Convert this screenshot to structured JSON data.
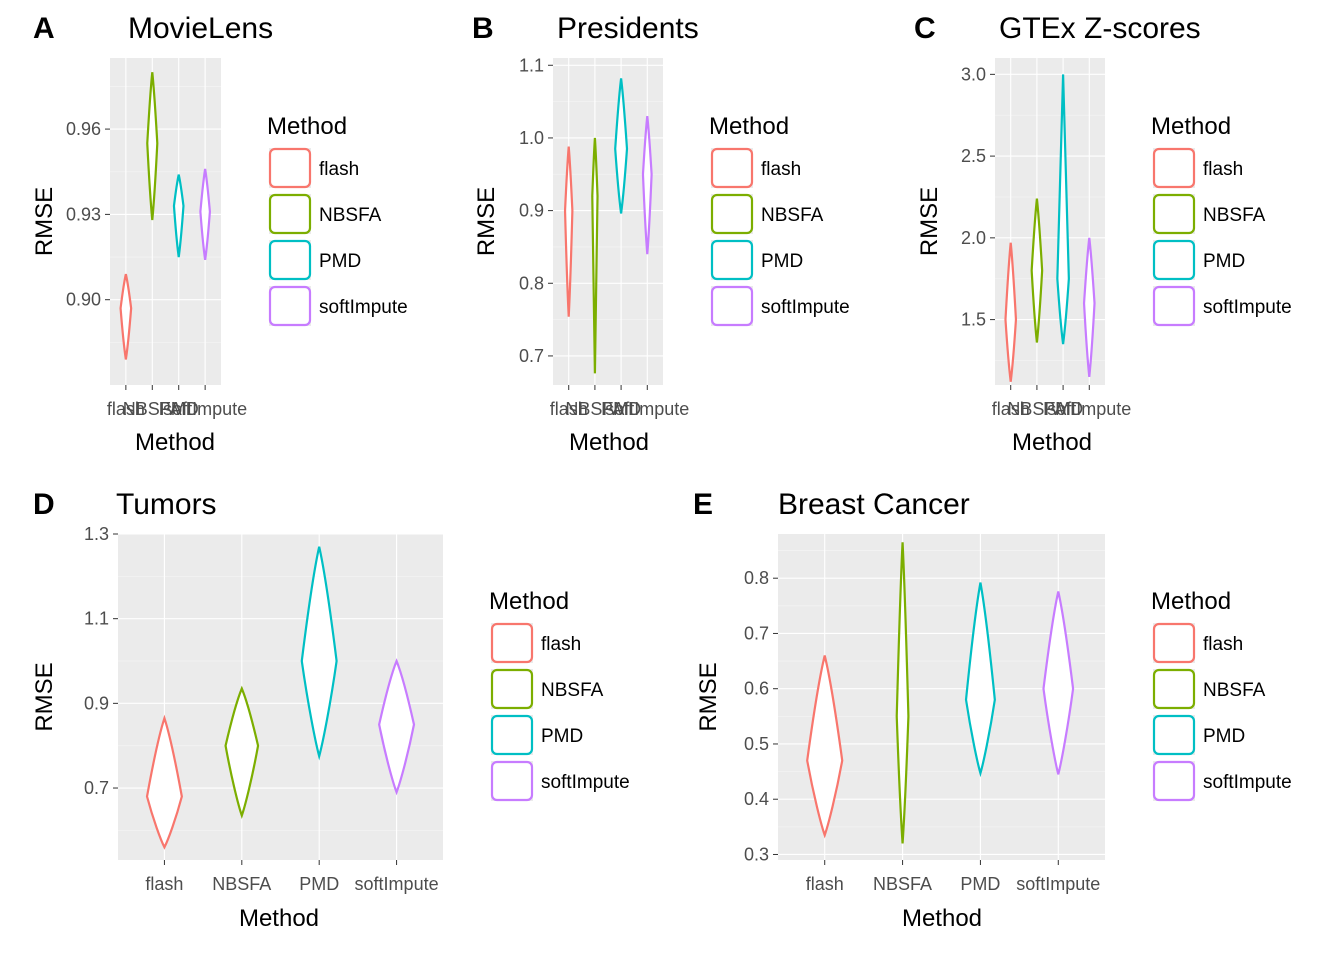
{
  "legend": {
    "title": "Method",
    "items": [
      "flash",
      "NBSFA",
      "PMD",
      "softImpute"
    ],
    "colors": [
      "#F8766D",
      "#7CAE00",
      "#00BFC4",
      "#C77CFF"
    ]
  },
  "chart_data": [
    {
      "panel": "A",
      "type": "violin",
      "title": "MovieLens",
      "xlabel": "Method",
      "ylabel": "RMSE",
      "categories": [
        "flash",
        "NBSFA",
        "PMD",
        "softImpute"
      ],
      "ylim": [
        0.87,
        0.985
      ],
      "yticks": [
        0.9,
        0.93,
        0.96
      ],
      "ytick_labels": [
        "0.90",
        "0.93",
        "0.96"
      ],
      "series": [
        {
          "name": "flash",
          "min": 0.879,
          "max": 0.909,
          "mid": 0.894,
          "peak": 0.897,
          "halfwidth": 0.4
        },
        {
          "name": "NBSFA",
          "min": 0.928,
          "max": 0.98,
          "mid": 0.955,
          "peak": 0.955,
          "halfwidth": 0.38
        },
        {
          "name": "PMD",
          "min": 0.915,
          "max": 0.944,
          "mid": 0.93,
          "peak": 0.933,
          "halfwidth": 0.36
        },
        {
          "name": "softImpute",
          "min": 0.914,
          "max": 0.946,
          "mid": 0.93,
          "peak": 0.931,
          "halfwidth": 0.36
        }
      ]
    },
    {
      "panel": "B",
      "type": "violin",
      "title": "Presidents",
      "xlabel": "Method",
      "ylabel": "RMSE",
      "categories": [
        "flash",
        "NBSFA",
        "PMD",
        "softImpute"
      ],
      "ylim": [
        0.66,
        1.11
      ],
      "yticks": [
        0.7,
        0.8,
        0.9,
        1.0,
        1.1
      ],
      "ytick_labels": [
        "0.7",
        "0.8",
        "0.9",
        "1.0",
        "1.1"
      ],
      "series": [
        {
          "name": "flash",
          "min": 0.754,
          "max": 0.988,
          "mid": 0.87,
          "peak": 0.9,
          "halfwidth": 0.28
        },
        {
          "name": "NBSFA",
          "min": 0.676,
          "max": 1.0,
          "mid": 0.86,
          "peak": 0.92,
          "halfwidth": 0.2
        },
        {
          "name": "PMD",
          "min": 0.896,
          "max": 1.082,
          "mid": 0.98,
          "peak": 0.985,
          "halfwidth": 0.45
        },
        {
          "name": "softImpute",
          "min": 0.84,
          "max": 1.03,
          "mid": 0.93,
          "peak": 0.95,
          "halfwidth": 0.33
        }
      ]
    },
    {
      "panel": "C",
      "type": "violin",
      "title": "GTEx Z-scores",
      "xlabel": "Method",
      "ylabel": "RMSE",
      "categories": [
        "flash",
        "NBSFA",
        "PMD",
        "softImpute"
      ],
      "ylim": [
        1.1,
        3.1
      ],
      "yticks": [
        1.5,
        2.0,
        2.5,
        3.0
      ],
      "ytick_labels": [
        "1.5",
        "2.0",
        "2.5",
        "3.0"
      ],
      "series": [
        {
          "name": "flash",
          "min": 1.12,
          "max": 1.97,
          "mid": 1.5,
          "peak": 1.5,
          "halfwidth": 0.4
        },
        {
          "name": "NBSFA",
          "min": 1.36,
          "max": 2.24,
          "mid": 1.8,
          "peak": 1.8,
          "halfwidth": 0.4
        },
        {
          "name": "PMD",
          "min": 1.35,
          "max": 3.0,
          "mid": 1.8,
          "peak": 1.75,
          "halfwidth": 0.44
        },
        {
          "name": "softImpute",
          "min": 1.15,
          "max": 2.0,
          "mid": 1.6,
          "peak": 1.6,
          "halfwidth": 0.4
        }
      ]
    },
    {
      "panel": "D",
      "type": "violin",
      "title": "Tumors",
      "xlabel": "Method",
      "ylabel": "RMSE",
      "categories": [
        "flash",
        "NBSFA",
        "PMD",
        "softImpute"
      ],
      "ylim": [
        0.53,
        1.3
      ],
      "yticks": [
        0.7,
        0.9,
        1.1,
        1.3
      ],
      "ytick_labels": [
        "0.7",
        "0.9",
        "1.1",
        "1.3"
      ],
      "series": [
        {
          "name": "flash",
          "min": 0.56,
          "max": 0.865,
          "mid": 0.7,
          "peak": 0.68,
          "halfwidth": 0.45
        },
        {
          "name": "NBSFA",
          "min": 0.635,
          "max": 0.935,
          "mid": 0.78,
          "peak": 0.8,
          "halfwidth": 0.42
        },
        {
          "name": "PMD",
          "min": 0.775,
          "max": 1.27,
          "mid": 1.02,
          "peak": 1.0,
          "halfwidth": 0.45
        },
        {
          "name": "softImpute",
          "min": 0.69,
          "max": 1.0,
          "mid": 0.85,
          "peak": 0.85,
          "halfwidth": 0.45
        }
      ]
    },
    {
      "panel": "E",
      "type": "violin",
      "title": "Breast Cancer",
      "xlabel": "Method",
      "ylabel": "RMSE",
      "categories": [
        "flash",
        "NBSFA",
        "PMD",
        "softImpute"
      ],
      "ylim": [
        0.29,
        0.88
      ],
      "yticks": [
        0.3,
        0.4,
        0.5,
        0.6,
        0.7,
        0.8
      ],
      "ytick_labels": [
        "0.3",
        "0.4",
        "0.5",
        "0.6",
        "0.7",
        "0.8"
      ],
      "series": [
        {
          "name": "flash",
          "min": 0.335,
          "max": 0.66,
          "mid": 0.48,
          "peak": 0.47,
          "halfwidth": 0.45
        },
        {
          "name": "NBSFA",
          "min": 0.32,
          "max": 0.865,
          "mid": 0.55,
          "peak": 0.55,
          "halfwidth": 0.15
        },
        {
          "name": "PMD",
          "min": 0.447,
          "max": 0.792,
          "mid": 0.6,
          "peak": 0.58,
          "halfwidth": 0.37
        },
        {
          "name": "softImpute",
          "min": 0.445,
          "max": 0.776,
          "mid": 0.61,
          "peak": 0.6,
          "halfwidth": 0.38
        }
      ]
    }
  ]
}
